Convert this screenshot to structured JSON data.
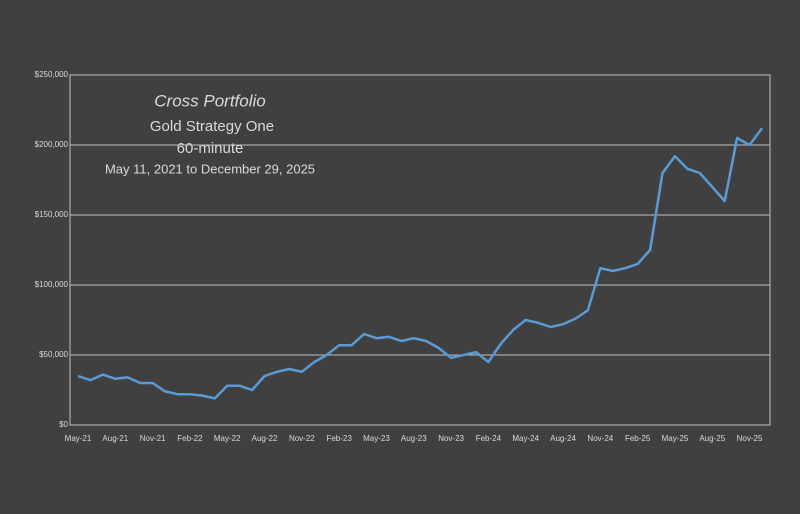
{
  "chart_data": {
    "type": "line",
    "title": "Cross Portfolio",
    "subtitle": "Gold Strategy One",
    "subtitle2": "60-minute",
    "date_range": "May 11,  2021 to December 29, 2025",
    "color": "#5b9bd5",
    "grid": true,
    "categories": [
      "May-21",
      null,
      null,
      "Aug-21",
      null,
      null,
      "Nov-21",
      null,
      null,
      "Feb-22",
      null,
      null,
      "May-22",
      null,
      null,
      "Aug-22",
      null,
      null,
      "Nov-22",
      null,
      null,
      "Feb-23",
      null,
      null,
      "May-23",
      null,
      null,
      "Aug-23",
      null,
      null,
      "Nov-23",
      null,
      null,
      "Feb-24",
      null,
      null,
      "May-24",
      null,
      null,
      "Aug-24",
      null,
      null,
      "Nov-24",
      null,
      null,
      "Feb-25",
      null,
      null,
      "May-25",
      null,
      null,
      "Aug-25",
      null,
      null,
      "Nov-25",
      null
    ],
    "values": [
      35000,
      32000,
      36000,
      33000,
      34000,
      30000,
      30000,
      24000,
      22000,
      22000,
      21000,
      19000,
      28000,
      28000,
      25000,
      35000,
      38000,
      40000,
      38000,
      45000,
      50000,
      57000,
      57000,
      65000,
      62000,
      63000,
      60000,
      62000,
      60000,
      55000,
      48000,
      50000,
      52000,
      45000,
      58000,
      68000,
      75000,
      73000,
      70000,
      72000,
      76000,
      82000,
      112000,
      110000,
      112000,
      115000,
      125000,
      180000,
      192000,
      183000,
      180000,
      170000,
      160000,
      205000,
      200000,
      212000
    ],
    "ylim": [
      0,
      250000
    ],
    "yticks": [
      {
        "value": 0,
        "label": "$0"
      },
      {
        "value": 50000,
        "label": "$50,000"
      },
      {
        "value": 100000,
        "label": "$100,000"
      },
      {
        "value": 150000,
        "label": "$150,000"
      },
      {
        "value": 200000,
        "label": "$200,000"
      },
      {
        "value": 250000,
        "label": "$250,000"
      }
    ]
  }
}
